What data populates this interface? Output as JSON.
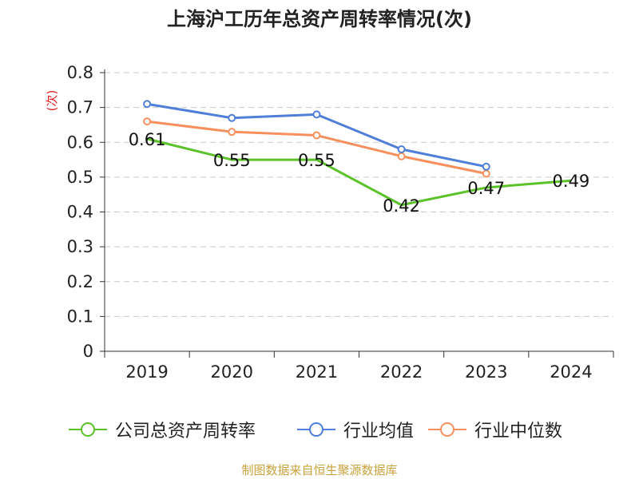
{
  "chart_data": {
    "type": "line",
    "title": "上海沪工历年总资产周转率情况(次)",
    "xlabel": "",
    "ylabel": "(次)",
    "ylim": [
      0,
      0.8
    ],
    "yticks": [
      "0",
      "0.1",
      "0.2",
      "0.3",
      "0.4",
      "0.5",
      "0.6",
      "0.7",
      "0.8"
    ],
    "categories": [
      "2019",
      "2020",
      "2021",
      "2022",
      "2023",
      "2024"
    ],
    "grid": true,
    "legend_position": "bottom",
    "series": [
      {
        "name": "公司总资产周转率",
        "color": "#5cc229",
        "values": [
          0.61,
          0.55,
          0.55,
          0.42,
          0.47,
          0.49
        ],
        "labels": [
          "0.61",
          "0.55",
          "0.55",
          "0.42",
          "0.47",
          "0.49"
        ],
        "show_labels": true
      },
      {
        "name": "行业均值",
        "color": "#4f7fd8",
        "values": [
          0.71,
          0.67,
          0.68,
          0.58,
          0.53,
          null
        ],
        "show_labels": false
      },
      {
        "name": "行业中位数",
        "color": "#f7905d",
        "values": [
          0.66,
          0.63,
          0.62,
          0.56,
          0.51,
          null
        ],
        "show_labels": false
      }
    ]
  },
  "source": "制图数据来自恒生聚源数据库"
}
